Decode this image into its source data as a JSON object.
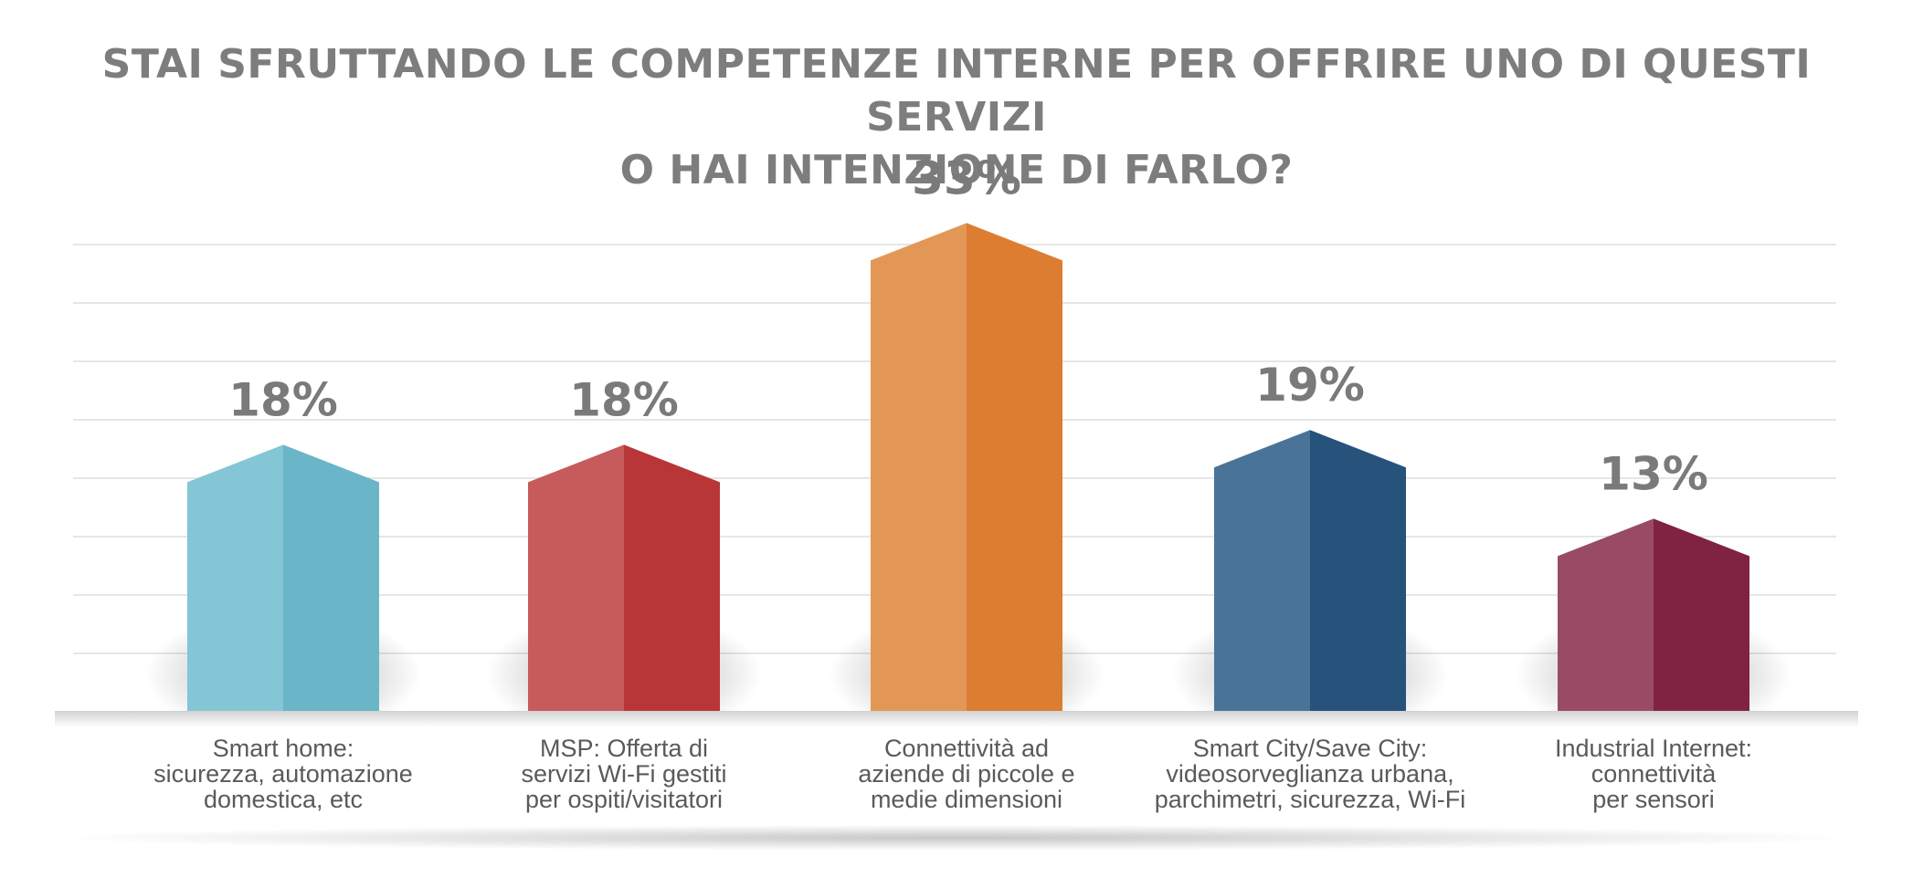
{
  "chart_data": {
    "type": "bar",
    "title_lines": [
      "STAI SFRUTTANDO LE COMPETENZE INTERNE PER OFFRIRE UNO DI QUESTI SERVIZI",
      "O HAI INTENZIONE DI FARLO?"
    ],
    "categories": [
      "Smart home:\nsicurezza, automazione\ndomestica, etc",
      "MSP: Offerta di\nservizi Wi-Fi gestiti\nper ospiti/visitatori",
      "Connettività ad\naziende di piccole e\nmedie dimensioni",
      "Smart City/Save City:\nvideosorveglianza urbana,\nparchimetri, sicurezza, Wi-Fi",
      "Industrial Internet:\nconnettività\nper sensori"
    ],
    "values": [
      18,
      18,
      33,
      19,
      13
    ],
    "value_labels": [
      "18%",
      "18%",
      "33%",
      "19%",
      "13%"
    ],
    "unit": "%",
    "ylim": [
      0,
      33
    ],
    "grid": true,
    "legend": "none",
    "colors": [
      {
        "light": "#84c6d5",
        "dark": "#6ab5c8"
      },
      {
        "light": "#c75a5b",
        "dark": "#b83638"
      },
      {
        "light": "#e39756",
        "dark": "#dc7d32"
      },
      {
        "light": "#497498",
        "dark": "#26527c"
      },
      {
        "light": "#994b66",
        "dark": "#802343"
      }
    ]
  }
}
